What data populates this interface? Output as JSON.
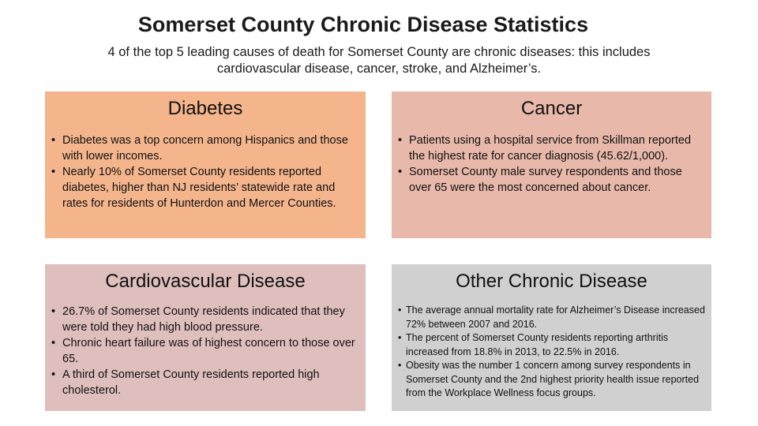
{
  "title": "Somerset County Chronic Disease Statistics",
  "subtitle": "4 of the top 5 leading causes of death for Somerset County are chronic diseases: this includes cardiovascular disease, cancer, stroke, and Alzheimer’s.",
  "colors": {
    "diabetes": "#f4b58c",
    "cancer": "#e8b8aa",
    "cardiovascular": "#dfbfbd",
    "other": "#d0d0d0"
  },
  "boxes": {
    "diabetes": {
      "heading": "Diabetes",
      "bullets": [
        "Diabetes was a top concern among Hispanics and those with lower incomes.",
        "Nearly 10% of Somerset County residents reported diabetes, higher than NJ residents’ statewide rate and rates for residents of Hunterdon and Mercer Counties."
      ]
    },
    "cancer": {
      "heading": "Cancer",
      "bullets": [
        "Patients using a hospital service from Skillman reported the highest rate for cancer diagnosis (45.62/1,000).",
        "Somerset County male survey respondents and those over 65 were the most concerned about cancer."
      ]
    },
    "cardiovascular": {
      "heading": "Cardiovascular Disease",
      "bullets": [
        "26.7% of Somerset County residents indicated that they were told they had high blood pressure.",
        "Chronic heart failure was of highest concern to those over 65.",
        "A third of Somerset County residents reported high cholesterol."
      ]
    },
    "other": {
      "heading": "Other Chronic Disease",
      "bullets": [
        "The average annual mortality rate for Alzheimer’s Disease increased 72% between 2007 and 2016.",
        "The percent of Somerset County residents reporting arthritis increased from 18.8% in 2013, to 22.5% in 2016.",
        "Obesity was the number 1 concern among survey respondents in Somerset County and the 2nd highest priority health issue reported from the Workplace Wellness focus groups."
      ]
    }
  }
}
